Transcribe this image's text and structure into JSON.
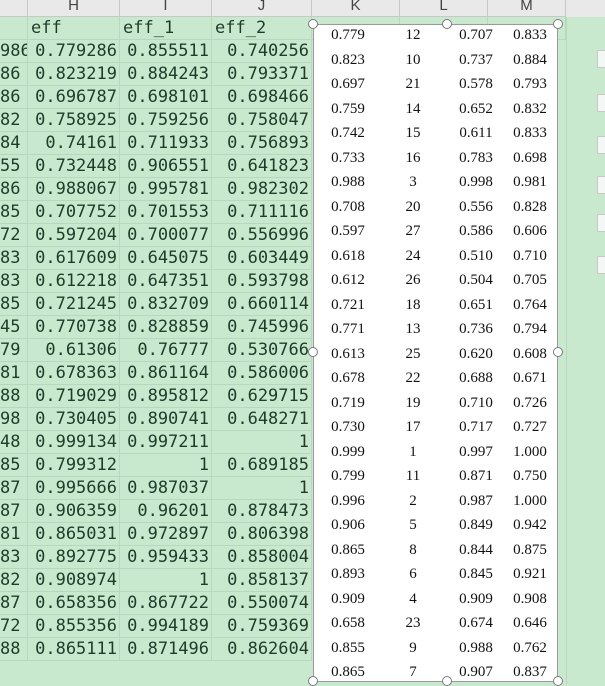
{
  "spreadsheet": {
    "column_letters": [
      "H",
      "I",
      "J",
      "K",
      "L",
      "M"
    ],
    "header_row": [
      "eff",
      "eff_1",
      "eff_2"
    ],
    "partial_left_values": [
      "986",
      "86",
      "86",
      "82",
      "84",
      "55",
      "86",
      "85",
      "72",
      "83",
      "83",
      "85",
      "45",
      "79",
      "81",
      "88",
      "98",
      "48",
      "85",
      "87",
      "87",
      "81",
      "83",
      "82",
      "87",
      "72",
      "88"
    ],
    "rows": [
      [
        "0.779286",
        "0.855511",
        "0.740256"
      ],
      [
        "0.823219",
        "0.884243",
        "0.793371"
      ],
      [
        "0.696787",
        "0.698101",
        "0.698466"
      ],
      [
        "0.758925",
        "0.759256",
        "0.758047"
      ],
      [
        "0.74161",
        "0.711933",
        "0.756893"
      ],
      [
        "0.732448",
        "0.906551",
        "0.641823"
      ],
      [
        "0.988067",
        "0.995781",
        "0.982302"
      ],
      [
        "0.707752",
        "0.701553",
        "0.711116"
      ],
      [
        "0.597204",
        "0.700077",
        "0.556996"
      ],
      [
        "0.617609",
        "0.645075",
        "0.603449"
      ],
      [
        "0.612218",
        "0.647351",
        "0.593798"
      ],
      [
        "0.721245",
        "0.832709",
        "0.660114"
      ],
      [
        "0.770738",
        "0.828859",
        "0.745996"
      ],
      [
        "0.61306",
        "0.76777",
        "0.530766"
      ],
      [
        "0.678363",
        "0.861164",
        "0.586006"
      ],
      [
        "0.719029",
        "0.895812",
        "0.629715"
      ],
      [
        "0.730405",
        "0.890741",
        "0.648271"
      ],
      [
        "0.999134",
        "0.997211",
        "1"
      ],
      [
        "0.799312",
        "1",
        "0.689185"
      ],
      [
        "0.995666",
        "0.987037",
        "1"
      ],
      [
        "0.906359",
        "0.96201",
        "0.878473"
      ],
      [
        "0.865031",
        "0.972897",
        "0.806398"
      ],
      [
        "0.892775",
        "0.959433",
        "0.858004"
      ],
      [
        "0.908974",
        "1",
        "0.858137"
      ],
      [
        "0.658356",
        "0.867722",
        "0.550074"
      ],
      [
        "0.855356",
        "0.994189",
        "0.759369"
      ],
      [
        "0.865111",
        "0.871496",
        "0.862604"
      ]
    ]
  },
  "pasted_table": {
    "rows": [
      [
        "0.779",
        "12",
        "0.707",
        "0.833"
      ],
      [
        "0.823",
        "10",
        "0.737",
        "0.884"
      ],
      [
        "0.697",
        "21",
        "0.578",
        "0.793"
      ],
      [
        "0.759",
        "14",
        "0.652",
        "0.832"
      ],
      [
        "0.742",
        "15",
        "0.611",
        "0.833"
      ],
      [
        "0.733",
        "16",
        "0.783",
        "0.698"
      ],
      [
        "0.988",
        "3",
        "0.998",
        "0.981"
      ],
      [
        "0.708",
        "20",
        "0.556",
        "0.828"
      ],
      [
        "0.597",
        "27",
        "0.586",
        "0.606"
      ],
      [
        "0.618",
        "24",
        "0.510",
        "0.710"
      ],
      [
        "0.612",
        "26",
        "0.504",
        "0.705"
      ],
      [
        "0.721",
        "18",
        "0.651",
        "0.764"
      ],
      [
        "0.771",
        "13",
        "0.736",
        "0.794"
      ],
      [
        "0.613",
        "25",
        "0.620",
        "0.608"
      ],
      [
        "0.678",
        "22",
        "0.688",
        "0.671"
      ],
      [
        "0.719",
        "19",
        "0.710",
        "0.726"
      ],
      [
        "0.730",
        "17",
        "0.717",
        "0.727"
      ],
      [
        "0.999",
        "1",
        "0.997",
        "1.000"
      ],
      [
        "0.799",
        "11",
        "0.871",
        "0.750"
      ],
      [
        "0.996",
        "2",
        "0.987",
        "1.000"
      ],
      [
        "0.906",
        "5",
        "0.849",
        "0.942"
      ],
      [
        "0.865",
        "8",
        "0.844",
        "0.875"
      ],
      [
        "0.893",
        "6",
        "0.845",
        "0.921"
      ],
      [
        "0.909",
        "4",
        "0.909",
        "0.908"
      ],
      [
        "0.658",
        "23",
        "0.674",
        "0.646"
      ],
      [
        "0.855",
        "9",
        "0.988",
        "0.762"
      ],
      [
        "0.865",
        "7",
        "0.907",
        "0.837"
      ]
    ]
  },
  "colors": {
    "cell_fill": "#c9e9cf",
    "header_fill": "#e9e9e9",
    "table_fill": "#ffffff",
    "text": "#1f3b2a"
  }
}
